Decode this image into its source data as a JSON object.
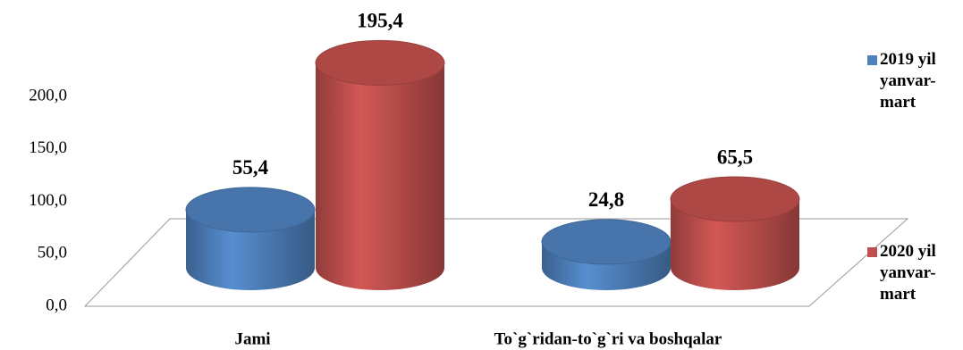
{
  "chart_data": {
    "type": "cylinder",
    "categories": [
      "Jami",
      "To`g`ridan-to`g`ri va boshqalar"
    ],
    "series": [
      {
        "name": "2019 yil yanvar-mart",
        "color": "#4f81bd",
        "values": [
          55.4,
          24.8
        ],
        "value_labels": [
          "55,4",
          "24,8"
        ]
      },
      {
        "name": "2020 yil yanvar-mart",
        "color": "#c0504d",
        "values": [
          195.4,
          65.5
        ],
        "value_labels": [
          "195,4",
          "65,5"
        ]
      }
    ],
    "ylim": [
      0,
      200
    ],
    "yticks": [
      {
        "value": 0,
        "label": "0,0"
      },
      {
        "value": 50,
        "label": "50,0"
      },
      {
        "value": 100,
        "label": "100,0"
      },
      {
        "value": 150,
        "label": "150,0"
      },
      {
        "value": 200,
        "label": "200,0"
      }
    ],
    "legend": "right"
  }
}
